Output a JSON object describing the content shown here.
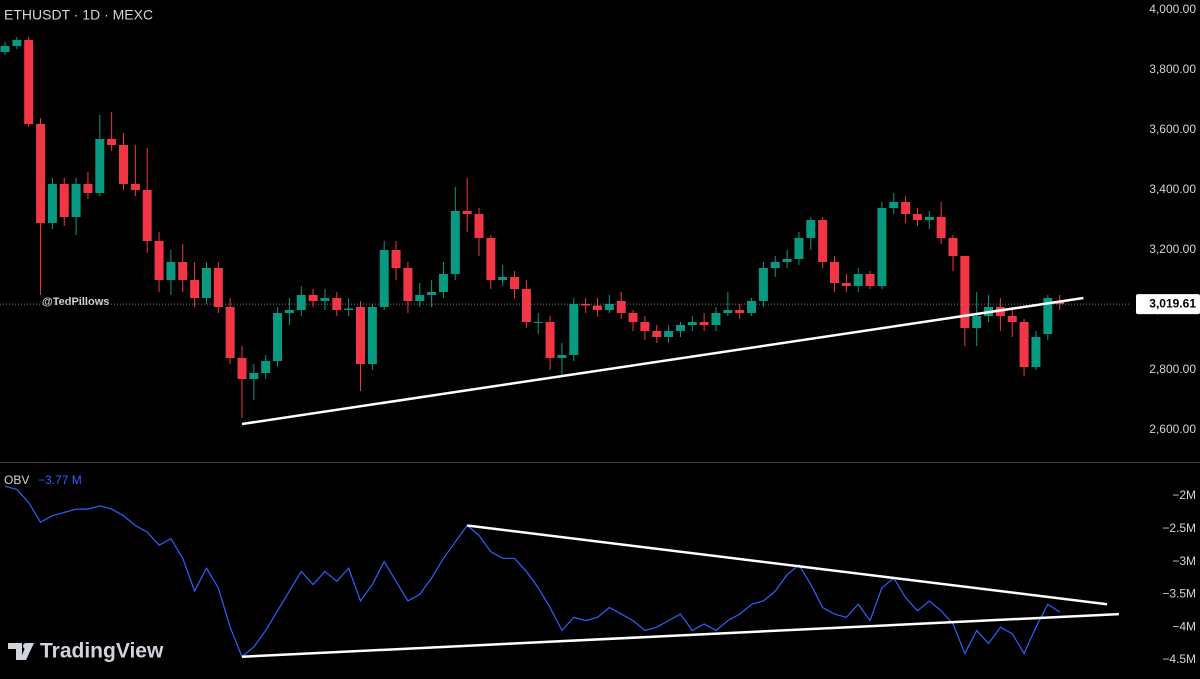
{
  "chart_data": [
    {
      "type": "candlestick",
      "title": "ETHUSDT · 1D · MEXC",
      "annotation": "@TedPillows",
      "up_color": "#089981",
      "down_color": "#f23645",
      "open": [
        3860,
        3880,
        3900,
        3620,
        3290,
        3420,
        3310,
        3420,
        3390,
        3570,
        3550,
        3420,
        3400,
        3230,
        3100,
        3160,
        3100,
        3040,
        3140,
        3010,
        2840,
        2770,
        2790,
        2830,
        2990,
        3000,
        3050,
        3030,
        3040,
        3000,
        3010,
        2820,
        3010,
        3200,
        3140,
        3030,
        3050,
        3060,
        3120,
        3330,
        3320,
        3240,
        3100,
        3110,
        3070,
        2960,
        2960,
        2840,
        2850,
        3020,
        3015,
        3000,
        3030,
        2990,
        2960,
        2930,
        2910,
        2930,
        2950,
        2960,
        2950,
        2990,
        3000,
        2990,
        3030,
        3140,
        3160,
        3170,
        3240,
        3300,
        3160,
        3090,
        3080,
        3120,
        3080,
        3340,
        3360,
        3320,
        3300,
        3310,
        3240,
        3180,
        2940,
        2980,
        3010,
        2980,
        2960,
        2810,
        2920,
        3030
      ],
      "high": [
        3895,
        3910,
        3910,
        3640,
        3440,
        3440,
        3440,
        3460,
        3650,
        3660,
        3590,
        3550,
        3540,
        3260,
        3200,
        3220,
        3160,
        3160,
        3160,
        3040,
        2880,
        2820,
        2850,
        3010,
        3040,
        3080,
        3070,
        3070,
        3060,
        3040,
        3030,
        3020,
        3230,
        3230,
        3160,
        3090,
        3100,
        3160,
        3410,
        3440,
        3340,
        3250,
        3150,
        3130,
        3100,
        2990,
        2980,
        2890,
        3040,
        3040,
        3040,
        3050,
        3060,
        3000,
        2980,
        2950,
        2950,
        2960,
        2980,
        2990,
        3010,
        3060,
        3020,
        3040,
        3160,
        3180,
        3200,
        3260,
        3310,
        3310,
        3180,
        3120,
        3140,
        3130,
        3360,
        3390,
        3380,
        3340,
        3330,
        3360,
        3250,
        3180,
        3060,
        3050,
        3040,
        3000,
        2970,
        2930,
        3050,
        3050
      ],
      "low": [
        3850,
        3870,
        3610,
        3050,
        3270,
        3280,
        3250,
        3370,
        3380,
        3530,
        3400,
        3380,
        3190,
        3060,
        3050,
        3060,
        3010,
        3020,
        2990,
        2820,
        2640,
        2700,
        2770,
        2810,
        2950,
        2980,
        3010,
        3000,
        2980,
        2980,
        2730,
        2800,
        3000,
        3100,
        2990,
        3010,
        3010,
        3040,
        3100,
        3260,
        3180,
        3070,
        3080,
        3040,
        2940,
        2920,
        2800,
        2780,
        2830,
        2990,
        2980,
        2990,
        2970,
        2930,
        2900,
        2890,
        2890,
        2910,
        2930,
        2930,
        2930,
        2980,
        2970,
        2980,
        3010,
        3110,
        3140,
        3150,
        3200,
        3140,
        3060,
        3060,
        3060,
        3070,
        3070,
        3320,
        3290,
        3280,
        3270,
        3220,
        3130,
        2880,
        2880,
        2960,
        2930,
        2910,
        2780,
        2800,
        2900,
        3000
      ],
      "close": [
        3880,
        3900,
        3620,
        3290,
        3420,
        3310,
        3420,
        3390,
        3570,
        3550,
        3420,
        3400,
        3230,
        3100,
        3160,
        3100,
        3040,
        3140,
        3010,
        2840,
        2770,
        2790,
        2830,
        2990,
        3000,
        3050,
        3030,
        3040,
        3000,
        3005,
        2820,
        3010,
        3200,
        3140,
        3030,
        3050,
        3060,
        3120,
        3330,
        3320,
        3240,
        3100,
        3110,
        3070,
        2960,
        2960,
        2840,
        2850,
        3020,
        3015,
        3000,
        3020,
        2990,
        2960,
        2930,
        2910,
        2930,
        2950,
        2960,
        2950,
        2990,
        3000,
        2990,
        3030,
        3140,
        3160,
        3170,
        3240,
        3300,
        3160,
        3090,
        3080,
        3120,
        3080,
        3340,
        3360,
        3320,
        3300,
        3310,
        3240,
        3180,
        2940,
        2980,
        3010,
        2980,
        2960,
        2810,
        2910,
        3040,
        3019.61
      ],
      "ylim": [
        2600,
        4000
      ],
      "yticks": [
        {
          "value": 2600,
          "label": "2,600.00"
        },
        {
          "value": 2800,
          "label": "2,800.00"
        },
        {
          "value": 3000,
          "label": "3,000.00"
        },
        {
          "value": 3200,
          "label": "3,200.00"
        },
        {
          "value": 3400,
          "label": "3,400.00"
        },
        {
          "value": 3600,
          "label": "3,600.00"
        },
        {
          "value": 3800,
          "label": "3,800.00"
        },
        {
          "value": 4000,
          "label": "4,000.00"
        }
      ],
      "last_price": {
        "value": 3019.61,
        "label": "3,019.61"
      },
      "trendlines": [
        {
          "start": [
            20,
            2620
          ],
          "end": [
            91,
            3040
          ]
        }
      ]
    },
    {
      "type": "line",
      "series": [
        {
          "name": "OBV",
          "color": "#2962ff",
          "values": [
            -1.85,
            -1.9,
            -2.1,
            -2.4,
            -2.3,
            -2.25,
            -2.2,
            -2.2,
            -2.15,
            -2.2,
            -2.3,
            -2.45,
            -2.55,
            -2.75,
            -2.65,
            -2.95,
            -3.45,
            -3.1,
            -3.4,
            -4.0,
            -4.45,
            -4.3,
            -4.05,
            -3.75,
            -3.45,
            -3.15,
            -3.35,
            -3.15,
            -3.3,
            -3.1,
            -3.6,
            -3.35,
            -3.0,
            -3.3,
            -3.6,
            -3.5,
            -3.25,
            -2.95,
            -2.7,
            -2.45,
            -2.6,
            -2.85,
            -2.95,
            -2.95,
            -3.15,
            -3.4,
            -3.7,
            -4.05,
            -3.85,
            -3.9,
            -3.85,
            -3.7,
            -3.8,
            -3.9,
            -4.05,
            -4.0,
            -3.9,
            -3.8,
            -4.05,
            -3.95,
            -4.05,
            -3.9,
            -3.8,
            -3.65,
            -3.6,
            -3.45,
            -3.2,
            -3.05,
            -3.35,
            -3.7,
            -3.8,
            -3.85,
            -3.65,
            -3.9,
            -3.4,
            -3.25,
            -3.55,
            -3.75,
            -3.6,
            -3.75,
            -3.95,
            -4.4,
            -4.05,
            -4.25,
            -4.0,
            -4.1,
            -4.4,
            -4.0,
            -3.65,
            -3.77
          ]
        }
      ],
      "legend_value": "−3.77 M",
      "ylim": [
        -4.5,
        -2
      ],
      "yticks": [
        {
          "value": -2,
          "label": "−2M"
        },
        {
          "value": -2.5,
          "label": "−2.5M"
        },
        {
          "value": -3,
          "label": "−3M"
        },
        {
          "value": -3.5,
          "label": "−3.5M"
        },
        {
          "value": -4,
          "label": "−4M"
        },
        {
          "value": -4.5,
          "label": "−4.5M"
        }
      ],
      "trendlines": [
        {
          "start": [
            39,
            -2.45
          ],
          "end": [
            93,
            -3.65
          ]
        },
        {
          "start": [
            20,
            -4.45
          ],
          "end": [
            94,
            -3.8
          ]
        }
      ]
    }
  ],
  "branding": "TradingView"
}
